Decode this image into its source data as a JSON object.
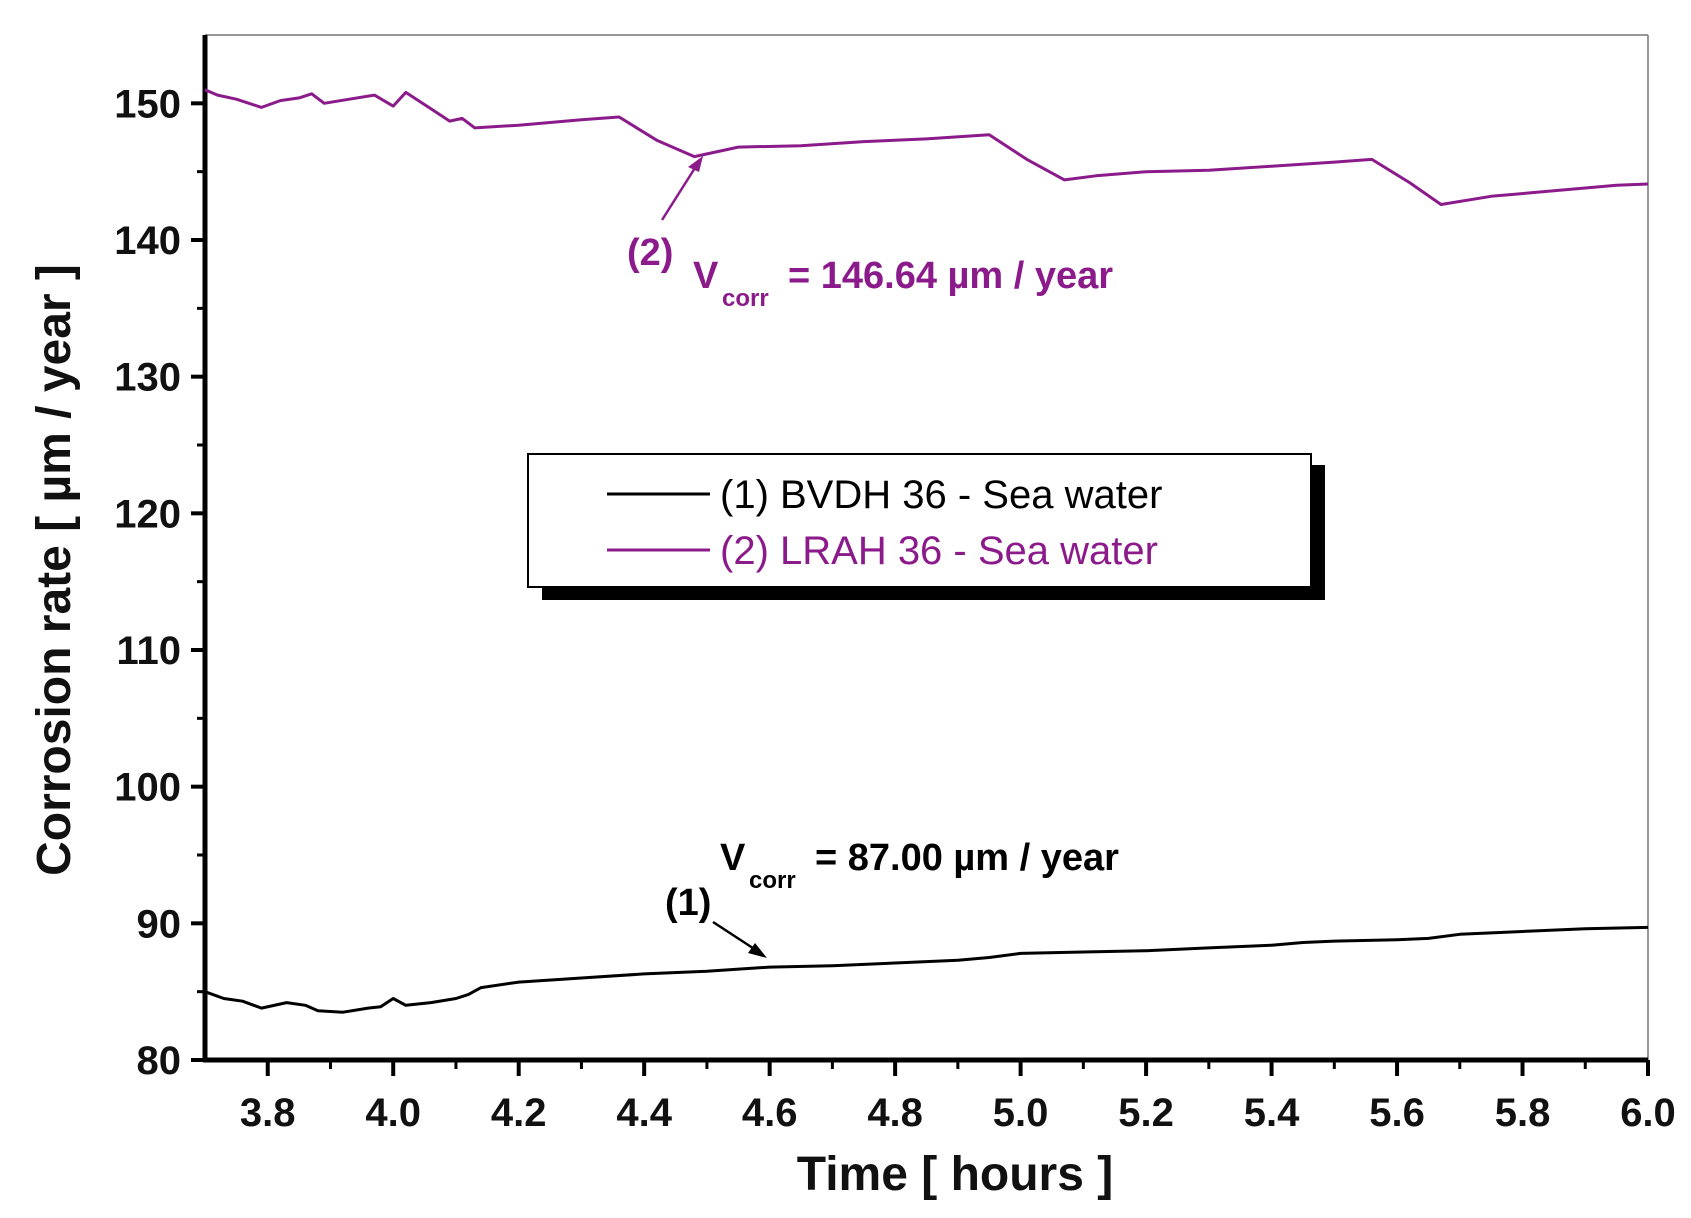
{
  "chart_data": {
    "type": "line",
    "title": "",
    "xlabel": "Time [ hours ]",
    "ylabel": "Corrosion rate [ µm / year ]",
    "xlim": [
      3.7,
      6.0
    ],
    "ylim": [
      80,
      155
    ],
    "x_ticks": [
      "3.8",
      "4.0",
      "4.2",
      "4.4",
      "4.6",
      "4.8",
      "5.0",
      "5.2",
      "5.4",
      "5.6",
      "5.8",
      "6.0"
    ],
    "y_ticks": [
      "80",
      "90",
      "100",
      "110",
      "120",
      "130",
      "140",
      "150"
    ],
    "grid": false,
    "legend_position": "center",
    "series": [
      {
        "name": "(1) BVDH 36 - Sea water",
        "color": "#000000",
        "x": [
          3.7,
          3.73,
          3.76,
          3.79,
          3.83,
          3.86,
          3.88,
          3.92,
          3.96,
          3.98,
          4.0,
          4.02,
          4.06,
          4.1,
          4.12,
          4.14,
          4.2,
          4.3,
          4.4,
          4.5,
          4.6,
          4.7,
          4.8,
          4.9,
          4.95,
          5.0,
          5.1,
          5.2,
          5.3,
          5.4,
          5.45,
          5.5,
          5.6,
          5.65,
          5.7,
          5.8,
          5.9,
          6.0
        ],
        "y": [
          85.0,
          84.5,
          84.3,
          83.8,
          84.2,
          84.0,
          83.6,
          83.5,
          83.8,
          83.9,
          84.5,
          84.0,
          84.2,
          84.5,
          84.8,
          85.3,
          85.7,
          86.0,
          86.3,
          86.5,
          86.8,
          86.9,
          87.1,
          87.3,
          87.5,
          87.8,
          87.9,
          88.0,
          88.2,
          88.4,
          88.6,
          88.7,
          88.8,
          88.9,
          89.2,
          89.4,
          89.6,
          89.7
        ]
      },
      {
        "name": "(2) LRAH 36 - Sea water",
        "color": "#8b1a8b",
        "x": [
          3.7,
          3.72,
          3.75,
          3.79,
          3.82,
          3.85,
          3.87,
          3.89,
          3.93,
          3.97,
          4.0,
          4.02,
          4.06,
          4.09,
          4.11,
          4.13,
          4.2,
          4.3,
          4.36,
          4.42,
          4.48,
          4.55,
          4.65,
          4.75,
          4.85,
          4.95,
          5.01,
          5.07,
          5.12,
          5.2,
          5.3,
          5.4,
          5.5,
          5.56,
          5.62,
          5.67,
          5.75,
          5.85,
          5.95,
          6.0
        ],
        "y": [
          151.0,
          150.6,
          150.3,
          149.7,
          150.2,
          150.4,
          150.7,
          150.0,
          150.3,
          150.6,
          149.8,
          150.8,
          149.6,
          148.7,
          148.9,
          148.2,
          148.4,
          148.8,
          149.0,
          147.3,
          146.1,
          146.8,
          146.9,
          147.2,
          147.4,
          147.7,
          145.9,
          144.4,
          144.7,
          145.0,
          145.1,
          145.4,
          145.7,
          145.9,
          144.2,
          142.6,
          143.2,
          143.6,
          144.0,
          144.1
        ]
      }
    ],
    "annotations": [
      {
        "series": 2,
        "label": "(2)",
        "symbol": "V",
        "subscript": "corr",
        "text": "= 146.64 µm / year",
        "x": 4.48,
        "y": 146.1
      },
      {
        "series": 1,
        "label": "(1)",
        "symbol": "V",
        "subscript": "corr",
        "text": "= 87.00 µm / year",
        "x": 4.58,
        "y": 86.8
      }
    ]
  }
}
